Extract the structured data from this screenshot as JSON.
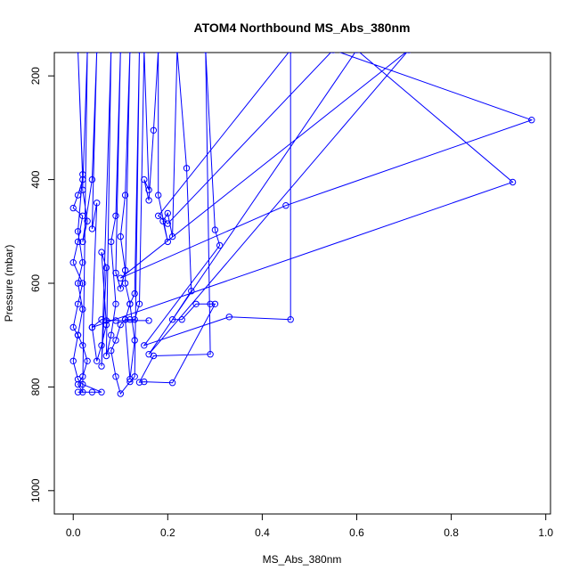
{
  "chart_data": {
    "type": "line",
    "title": "ATOM4 Northbound MS_Abs_380nm",
    "xlabel": "MS_Abs_380nm",
    "ylabel": "Pressure (mbar)",
    "xlim": [
      -0.04,
      1.01
    ],
    "ylim": [
      1045,
      155
    ],
    "y_reversed": true,
    "x_ticks": [
      0.0,
      0.2,
      0.4,
      0.6,
      0.8,
      1.0
    ],
    "x_tick_labels": [
      "0.0",
      "0.2",
      "0.4",
      "0.6",
      "0.8",
      "1.0"
    ],
    "y_ticks": [
      200,
      400,
      600,
      800,
      1000
    ],
    "y_tick_labels": [
      "200",
      "400",
      "600",
      "800",
      "1000"
    ],
    "grid": false,
    "legend": "none",
    "line_color": "#0000ff",
    "marker": "open-circle",
    "series": [
      {
        "points": [
          [
            0.01,
            810
          ],
          [
            0.04,
            810
          ],
          [
            0.06,
            810
          ],
          [
            0.02,
            795
          ],
          [
            0.01,
            785
          ],
          [
            0.0,
            750
          ],
          [
            0.01,
            700
          ],
          [
            0.0,
            685
          ],
          [
            0.01,
            640
          ],
          [
            0.02,
            600
          ],
          [
            0.0,
            560
          ],
          [
            0.01,
            520
          ],
          [
            0.02,
            470
          ],
          [
            0.0,
            455
          ],
          [
            0.01,
            430
          ],
          [
            0.02,
            400
          ],
          [
            0.01,
            150
          ],
          [
            0.02,
            390
          ],
          [
            0.01,
            500
          ],
          [
            0.02,
            560
          ],
          [
            0.01,
            600
          ],
          [
            0.02,
            650
          ],
          [
            0.01,
            700
          ],
          [
            0.02,
            720
          ],
          [
            0.03,
            750
          ],
          [
            0.02,
            780
          ],
          [
            0.01,
            795
          ],
          [
            0.02,
            810
          ],
          [
            0.03,
            150
          ],
          [
            0.02,
            420
          ],
          [
            0.03,
            480
          ],
          [
            0.02,
            520
          ],
          [
            0.04,
            400
          ],
          [
            0.05,
            150
          ],
          [
            0.04,
            495
          ],
          [
            0.05,
            445
          ],
          [
            0.04,
            685
          ],
          [
            0.05,
            750
          ],
          [
            0.06,
            720
          ],
          [
            0.07,
            680
          ],
          [
            0.06,
            540
          ],
          [
            0.07,
            570
          ],
          [
            0.06,
            760
          ],
          [
            0.08,
            150
          ],
          [
            0.07,
            740
          ],
          [
            0.08,
            700
          ],
          [
            0.09,
            640
          ],
          [
            0.08,
            520
          ],
          [
            0.09,
            470
          ],
          [
            0.1,
            150
          ],
          [
            0.09,
            580
          ],
          [
            0.1,
            610
          ],
          [
            0.11,
            575
          ],
          [
            0.1,
            510
          ],
          [
            0.11,
            430
          ],
          [
            0.12,
            150
          ],
          [
            0.11,
            600
          ],
          [
            0.12,
            640
          ],
          [
            0.11,
            670
          ],
          [
            0.12,
            785
          ],
          [
            0.13,
            710
          ],
          [
            0.12,
            640
          ],
          [
            0.13,
            620
          ],
          [
            0.14,
            150
          ],
          [
            0.13,
            780
          ],
          [
            0.12,
            790
          ],
          [
            0.1,
            813
          ],
          [
            0.09,
            780
          ],
          [
            0.08,
            730
          ],
          [
            0.09,
            710
          ],
          [
            0.1,
            680
          ],
          [
            0.11,
            670
          ],
          [
            0.12,
            670
          ],
          [
            0.13,
            670
          ],
          [
            0.14,
            640
          ],
          [
            0.15,
            150
          ],
          [
            0.16,
            420
          ],
          [
            0.15,
            400
          ],
          [
            0.16,
            440
          ],
          [
            0.17,
            305
          ],
          [
            0.18,
            150
          ],
          [
            0.18,
            430
          ],
          [
            0.2,
            520
          ],
          [
            0.19,
            480
          ],
          [
            0.2,
            465
          ],
          [
            0.21,
            510
          ],
          [
            0.22,
            150
          ],
          [
            0.24,
            378
          ],
          [
            0.25,
            615
          ],
          [
            0.21,
            670
          ],
          [
            0.23,
            670
          ],
          [
            0.26,
            640
          ],
          [
            0.29,
            640
          ],
          [
            0.3,
            640
          ],
          [
            0.21,
            792
          ],
          [
            0.15,
            790
          ],
          [
            0.14,
            791
          ],
          [
            0.17,
            740
          ],
          [
            0.29,
            737
          ],
          [
            0.28,
            150
          ],
          [
            0.3,
            497
          ],
          [
            0.31,
            527
          ],
          [
            0.15,
            720
          ],
          [
            0.33,
            665
          ],
          [
            0.46,
            670
          ],
          [
            0.46,
            150
          ],
          [
            0.18,
            470
          ],
          [
            0.2,
            485
          ],
          [
            0.55,
            150
          ],
          [
            0.97,
            285
          ],
          [
            0.45,
            450
          ],
          [
            0.1,
            590
          ],
          [
            0.71,
            150
          ],
          [
            0.16,
            737
          ],
          [
            0.6,
            150
          ],
          [
            0.93,
            405
          ],
          [
            0.04,
            685
          ],
          [
            0.06,
            670
          ],
          [
            0.09,
            672
          ],
          [
            0.16,
            672
          ],
          [
            0.07,
            672
          ]
        ]
      }
    ]
  }
}
